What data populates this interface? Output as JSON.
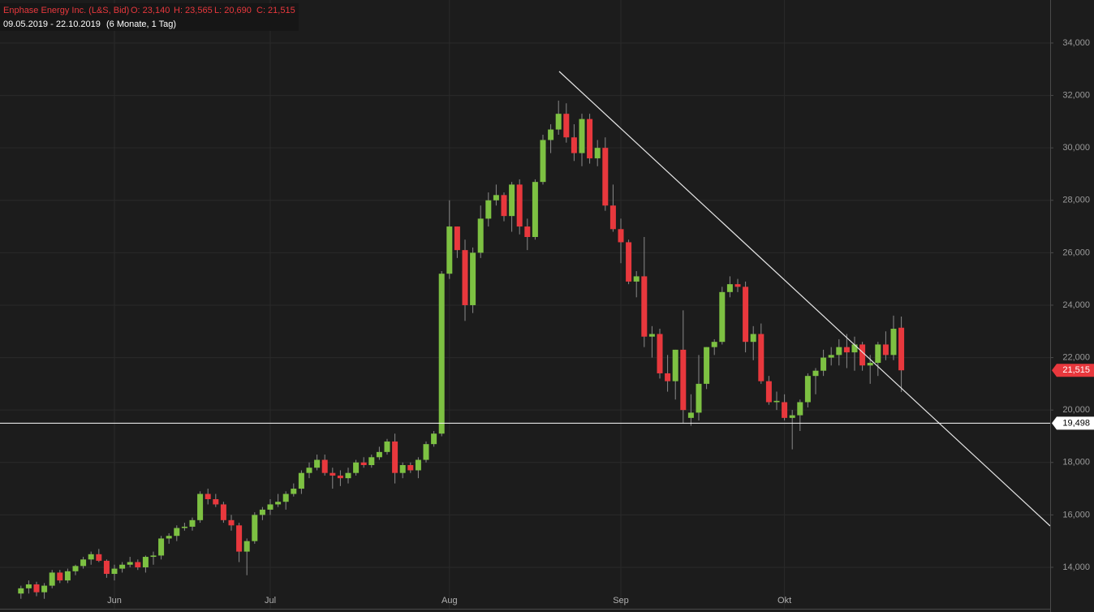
{
  "chart_data": {
    "type": "candlestick",
    "title": "Enphase Energy Inc. (L&S, Bid)",
    "ohlc_labels": [
      "O: 23,140",
      "H: 23,565",
      "L: 20,690",
      "C: 21,515"
    ],
    "subtitle": "09.05.2019 - 22.10.2019",
    "period": "(6 Monate, 1 Tag)",
    "up_color": "#7dc142",
    "down_color": "#e8383d",
    "grid": true,
    "ylim": [
      12420,
      35640
    ],
    "yticks": [
      {
        "value": 14000,
        "label": "14,000"
      },
      {
        "value": 16000,
        "label": "16,000"
      },
      {
        "value": 18000,
        "label": "18,000"
      },
      {
        "value": 20000,
        "label": "20,000"
      },
      {
        "value": 22000,
        "label": "22,000"
      },
      {
        "value": 24000,
        "label": "24,000"
      },
      {
        "value": 26000,
        "label": "26,000"
      },
      {
        "value": 28000,
        "label": "28,000"
      },
      {
        "value": 30000,
        "label": "30,000"
      },
      {
        "value": 32000,
        "label": "32,000"
      },
      {
        "value": 34000,
        "label": "34,000"
      }
    ],
    "last_price": {
      "value": 21515,
      "label": "21,515"
    },
    "hline": {
      "value": 19498,
      "label": "19,498"
    },
    "categories": [
      null,
      null,
      null,
      null,
      null,
      null,
      null,
      null,
      null,
      null,
      null,
      null,
      "Jun",
      null,
      null,
      null,
      null,
      null,
      null,
      null,
      null,
      null,
      null,
      null,
      null,
      null,
      null,
      null,
      null,
      null,
      null,
      null,
      "Jul",
      null,
      null,
      null,
      null,
      null,
      null,
      null,
      null,
      null,
      null,
      null,
      null,
      null,
      null,
      null,
      null,
      null,
      null,
      null,
      null,
      null,
      null,
      "Aug",
      null,
      null,
      null,
      null,
      null,
      null,
      null,
      null,
      null,
      null,
      null,
      null,
      null,
      null,
      null,
      null,
      null,
      null,
      null,
      null,
      null,
      "Sep",
      null,
      null,
      null,
      null,
      null,
      null,
      null,
      null,
      null,
      null,
      null,
      null,
      null,
      null,
      null,
      null,
      null,
      null,
      null,
      null,
      "Okt",
      null,
      null,
      null,
      null,
      null,
      null,
      null,
      null,
      null,
      null,
      null,
      null,
      null,
      null,
      null
    ],
    "open": [
      13000,
      13200,
      13350,
      13050,
      13300,
      13800,
      13500,
      13850,
      14050,
      14300,
      14500,
      14250,
      13750,
      13950,
      14100,
      14200,
      14000,
      14400,
      14450,
      15100,
      15200,
      15500,
      15550,
      15800,
      16800,
      16600,
      16400,
      15800,
      15600,
      14600,
      15000,
      16000,
      16200,
      16400,
      16500,
      16800,
      17000,
      17600,
      17800,
      18100,
      17600,
      17500,
      17400,
      17600,
      18000,
      17900,
      18200,
      18400,
      18800,
      17600,
      17900,
      17700,
      18100,
      18700,
      19100,
      25200,
      27000,
      26100,
      24000,
      26000,
      27300,
      28000,
      28200,
      27400,
      28600,
      27000,
      26600,
      28700,
      30300,
      30700,
      31300,
      30400,
      29800,
      31100,
      29600,
      30000,
      27800,
      26900,
      26400,
      24900,
      25100,
      22800,
      22900,
      21400,
      21100,
      22300,
      19700,
      19900,
      21000,
      22400,
      22600,
      24500,
      24800,
      24700,
      22600,
      22900,
      21100,
      20300,
      20300,
      19700,
      19800,
      20300,
      21300,
      21500,
      22000,
      22100,
      22400,
      22200,
      22500,
      21700,
      21800,
      22500,
      22100,
      23140
    ],
    "high": [
      13300,
      13500,
      13450,
      13400,
      13900,
      13900,
      13950,
      14100,
      14400,
      14600,
      14700,
      14300,
      14100,
      14200,
      14400,
      14300,
      14450,
      14600,
      15200,
      15300,
      15600,
      15700,
      15900,
      16900,
      17000,
      16800,
      16500,
      16000,
      15700,
      15100,
      16100,
      16300,
      16600,
      16800,
      16900,
      17200,
      17700,
      18000,
      18300,
      18300,
      17800,
      17700,
      17800,
      18100,
      18200,
      18300,
      18600,
      18900,
      19100,
      18000,
      18000,
      18200,
      18800,
      19200,
      25300,
      28000,
      27000,
      26500,
      26200,
      27800,
      28300,
      28600,
      28300,
      28700,
      28800,
      27300,
      28800,
      30500,
      30900,
      31800,
      31700,
      30900,
      31300,
      31300,
      30300,
      30400,
      28600,
      27300,
      26500,
      25300,
      26600,
      23200,
      23100,
      22100,
      22300,
      23800,
      20600,
      22100,
      22400,
      22700,
      24700,
      25100,
      25000,
      24900,
      23200,
      23300,
      21300,
      20700,
      20600,
      20000,
      20400,
      21400,
      21600,
      22300,
      22400,
      22700,
      22900,
      22800,
      22600,
      22100,
      22600,
      23000,
      23600,
      23565
    ],
    "low": [
      12800,
      13000,
      12900,
      12800,
      13200,
      13400,
      13400,
      13700,
      13950,
      14100,
      14200,
      13600,
      13500,
      13800,
      14000,
      13900,
      13800,
      14100,
      14300,
      14900,
      15000,
      15400,
      15400,
      15700,
      16400,
      16300,
      15700,
      15400,
      14200,
      13700,
      14900,
      15800,
      16000,
      16300,
      16200,
      16700,
      16800,
      17400,
      17700,
      17500,
      17000,
      17100,
      17200,
      17500,
      17800,
      17800,
      18100,
      18300,
      17200,
      17400,
      17600,
      17400,
      18000,
      18600,
      19000,
      25000,
      25800,
      23400,
      23700,
      25800,
      27000,
      27800,
      27200,
      26800,
      26700,
      26100,
      26500,
      28600,
      29800,
      30500,
      30200,
      29500,
      29300,
      29400,
      29300,
      27600,
      26800,
      25600,
      24800,
      24300,
      22400,
      22000,
      21200,
      20700,
      20400,
      19500,
      19400,
      19600,
      20800,
      22100,
      22500,
      24300,
      24500,
      22200,
      21900,
      21000,
      20200,
      20000,
      19600,
      18500,
      19200,
      20100,
      20600,
      21300,
      21700,
      21700,
      21600,
      21500,
      21500,
      21000,
      21300,
      21900,
      21900,
      20690
    ],
    "close": [
      13200,
      13350,
      13050,
      13300,
      13800,
      13500,
      13850,
      14050,
      14300,
      14500,
      14250,
      13750,
      13950,
      14100,
      14200,
      14000,
      14400,
      14450,
      15100,
      15200,
      15500,
      15550,
      15800,
      16800,
      16600,
      16400,
      15800,
      15600,
      14600,
      15000,
      16000,
      16200,
      16400,
      16500,
      16800,
      17000,
      17600,
      17800,
      18100,
      17600,
      17500,
      17400,
      17600,
      18000,
      17900,
      18200,
      18400,
      18800,
      17600,
      17900,
      17700,
      18100,
      18700,
      19100,
      25200,
      27000,
      26100,
      24000,
      26000,
      27300,
      28000,
      28200,
      27400,
      28600,
      27000,
      26600,
      28700,
      30300,
      30700,
      31300,
      30400,
      29800,
      31100,
      29600,
      30000,
      27800,
      26900,
      26400,
      24900,
      25100,
      22800,
      22900,
      21400,
      21100,
      22300,
      20000,
      19900,
      21000,
      22400,
      22600,
      24500,
      24800,
      24700,
      22600,
      22900,
      21100,
      20300,
      20350,
      19700,
      19800,
      20300,
      21300,
      21500,
      22000,
      22100,
      22400,
      22200,
      22500,
      21700,
      21800,
      22500,
      22100,
      23100,
      21515
    ]
  }
}
